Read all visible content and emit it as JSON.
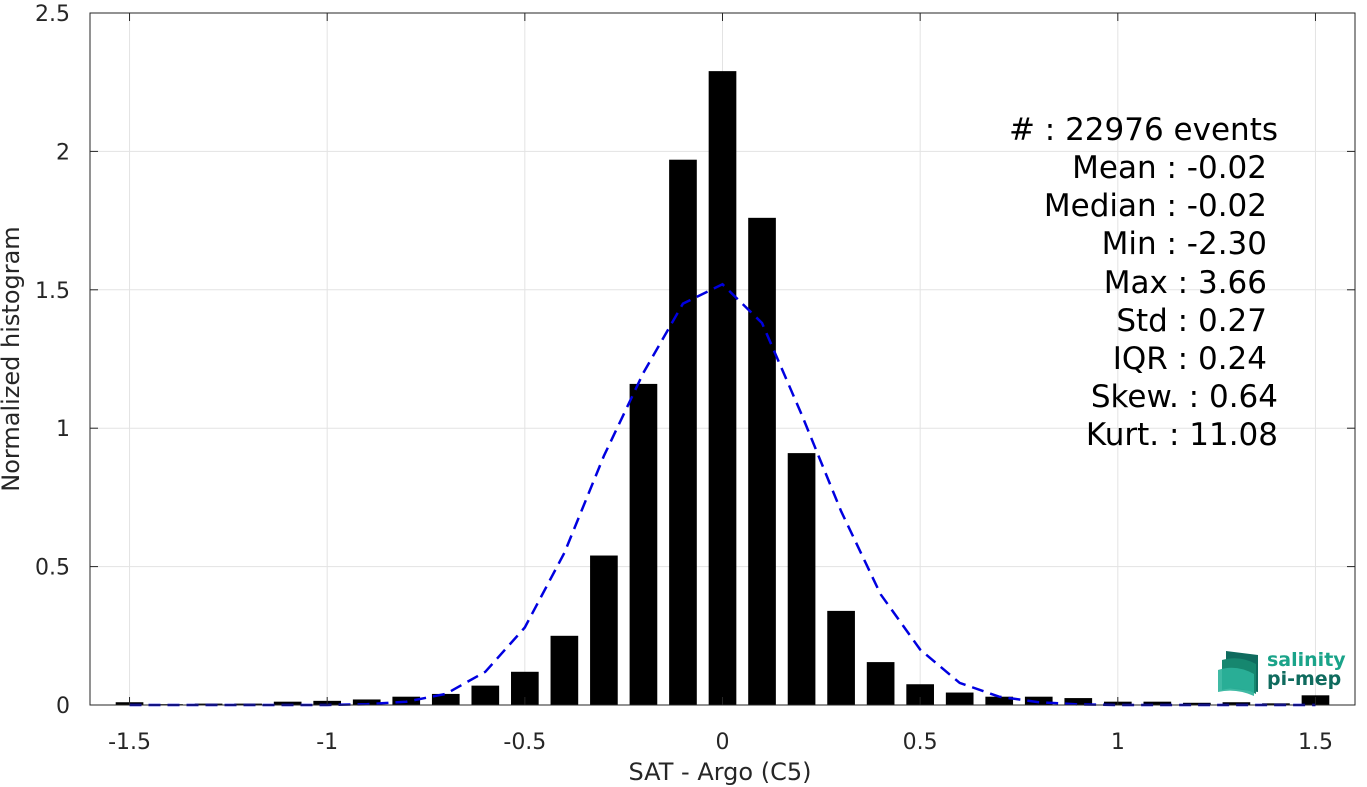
{
  "chart_data": {
    "type": "bar",
    "xlabel": "SAT - Argo (C5)",
    "ylabel": "Normalized histogram",
    "xlim": [
      -1.6,
      1.6
    ],
    "ylim": [
      0,
      2.5
    ],
    "xticks": [
      -1.5,
      -1,
      -0.5,
      0,
      0.5,
      1,
      1.5
    ],
    "xtick_labels": [
      "-1.5",
      "-1",
      "-0.5",
      "0",
      "0.5",
      "1",
      "1.5"
    ],
    "yticks": [
      0,
      0.5,
      1,
      1.5,
      2,
      2.5
    ],
    "ytick_labels": [
      "0",
      "0.5",
      "1",
      "1.5",
      "2",
      "2.5"
    ],
    "grid": true,
    "bar_color": "#000000",
    "bar_width": 0.07,
    "x": [
      -1.5,
      -1.4,
      -1.3,
      -1.2,
      -1.1,
      -1.0,
      -0.9,
      -0.8,
      -0.7,
      -0.6,
      -0.5,
      -0.4,
      -0.3,
      -0.2,
      -0.1,
      0.0,
      0.1,
      0.2,
      0.3,
      0.4,
      0.5,
      0.6,
      0.7,
      0.8,
      0.9,
      1.0,
      1.1,
      1.2,
      1.3,
      1.4,
      1.5
    ],
    "values": [
      0.01,
      0.003,
      0.005,
      0.005,
      0.012,
      0.015,
      0.02,
      0.03,
      0.04,
      0.07,
      0.12,
      0.25,
      0.54,
      1.16,
      1.97,
      2.29,
      1.76,
      0.91,
      0.34,
      0.155,
      0.075,
      0.045,
      0.03,
      0.03,
      0.025,
      0.012,
      0.012,
      0.008,
      0.01,
      0.006,
      0.035
    ],
    "fit_curve": {
      "style": "dashed",
      "color": "#0000e0",
      "x": [
        -1.5,
        -1.4,
        -1.3,
        -1.2,
        -1.1,
        -1.0,
        -0.9,
        -0.8,
        -0.7,
        -0.6,
        -0.5,
        -0.4,
        -0.3,
        -0.2,
        -0.1,
        0.0,
        0.1,
        0.2,
        0.3,
        0.4,
        0.5,
        0.6,
        0.7,
        0.8,
        0.9,
        1.0,
        1.1,
        1.2,
        1.3,
        1.4,
        1.5
      ],
      "y": [
        0.0,
        0.0,
        0.0,
        0.0,
        0.0,
        0.0,
        0.003,
        0.012,
        0.04,
        0.12,
        0.28,
        0.55,
        0.9,
        1.2,
        1.45,
        1.52,
        1.38,
        1.05,
        0.7,
        0.4,
        0.2,
        0.08,
        0.03,
        0.01,
        0.002,
        0.0,
        0.0,
        0.0,
        0.0,
        0.0,
        0.0
      ]
    }
  },
  "stats": [
    "#  : 22976 events",
    "Mean : -0.02",
    "Median : -0.02",
    "Min : -2.30",
    "Max : 3.66",
    "Std : 0.27",
    "IQR : 0.24",
    "Skew. : 0.64",
    "Kurt. : 11.08"
  ],
  "logo": {
    "line1": "salinity",
    "line2": "pi-mep",
    "color1": "#1aa389",
    "color2": "#0f6b5e"
  }
}
